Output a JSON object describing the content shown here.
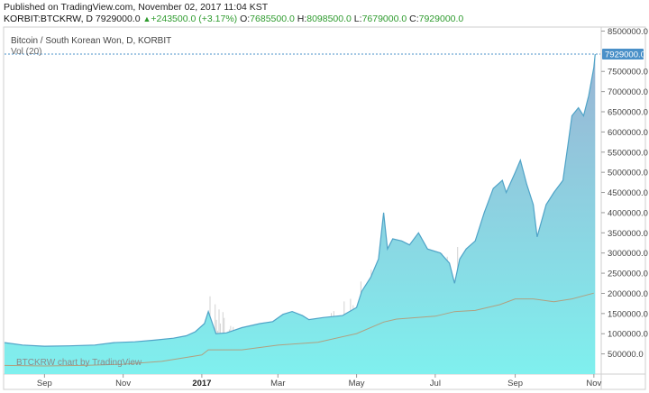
{
  "header": {
    "published": "Published on TradingView.com, November 02, 2017 11:04 KST",
    "symbol": "KORBIT:BTCKRW, D",
    "price": "7929000.0",
    "change": "+243500.0 (+3.17%)",
    "open_label": "O:",
    "open": "7685500.0",
    "high_label": "H:",
    "high": "8098500.0",
    "low_label": "L:",
    "low": "7679000.0",
    "close_label": "C:",
    "close": "7929000.0"
  },
  "legend": {
    "title": "Bitcoin / South Korean Won, D, KORBIT",
    "volume": "Vol (20)"
  },
  "watermark": "BTCKRW chart by TradingView",
  "colors": {
    "area_top": "#8fb6d6",
    "area_bottom": "#7fe8ea",
    "line": "#4fa3c7",
    "volume": "#9c9c9c",
    "price_box": "#4a90c8",
    "change_up": "#2e9b2e"
  },
  "chart_data": {
    "type": "area",
    "title": "Bitcoin / South Korean Won, D, KORBIT",
    "ylim": [
      0,
      8600000
    ],
    "y_ticks": [
      500000,
      1000000,
      1500000,
      2000000,
      2500000,
      3000000,
      3500000,
      4000000,
      4500000,
      5000000,
      5500000,
      6000000,
      6500000,
      7000000,
      7500000,
      8500000
    ],
    "y_tick_labels": [
      "500000.0",
      "1000000.0",
      "1500000.0",
      "2000000.0",
      "2500000.0",
      "3000000.0",
      "3500000.0",
      "4000000.0",
      "4500000.0",
      "5000000.0",
      "5500000.0",
      "6000000.0",
      "6500000.0",
      "7000000.0",
      "7500000.0",
      "8500000.0"
    ],
    "last_price": 7929000,
    "last_price_label": "7929000.0",
    "x_range": [
      "2016-08-01",
      "2017-11-06"
    ],
    "x_ticks": [
      {
        "date": "2016-09-01",
        "label": "Sep",
        "bold": false
      },
      {
        "date": "2016-11-01",
        "label": "Nov",
        "bold": false
      },
      {
        "date": "2017-01-01",
        "label": "2017",
        "bold": true
      },
      {
        "date": "2017-03-01",
        "label": "Mar",
        "bold": false
      },
      {
        "date": "2017-05-01",
        "label": "May",
        "bold": false
      },
      {
        "date": "2017-07-01",
        "label": "Jul",
        "bold": false
      },
      {
        "date": "2017-09-01",
        "label": "Sep",
        "bold": false
      },
      {
        "date": "2017-11-01",
        "label": "Nov",
        "bold": false
      }
    ],
    "series": [
      {
        "x": [
          "2016-08-01",
          "2016-08-15",
          "2016-09-01",
          "2016-09-20",
          "2016-10-10",
          "2016-10-25",
          "2016-11-10",
          "2016-11-25",
          "2016-12-10",
          "2016-12-20",
          "2016-12-27",
          "2017-01-03",
          "2017-01-06",
          "2017-01-12",
          "2017-01-20",
          "2017-02-01",
          "2017-02-15",
          "2017-02-25",
          "2017-03-05",
          "2017-03-12",
          "2017-03-20",
          "2017-03-25",
          "2017-04-05",
          "2017-04-20",
          "2017-05-01",
          "2017-05-05",
          "2017-05-12",
          "2017-05-18",
          "2017-05-22",
          "2017-05-25",
          "2017-05-29",
          "2017-06-05",
          "2017-06-11",
          "2017-06-18",
          "2017-06-25",
          "2017-07-05",
          "2017-07-12",
          "2017-07-16",
          "2017-07-20",
          "2017-07-25",
          "2017-08-01",
          "2017-08-08",
          "2017-08-15",
          "2017-08-22",
          "2017-08-25",
          "2017-09-01",
          "2017-09-05",
          "2017-09-10",
          "2017-09-15",
          "2017-09-18",
          "2017-09-25",
          "2017-10-01",
          "2017-10-08",
          "2017-10-12",
          "2017-10-15",
          "2017-10-20",
          "2017-10-24",
          "2017-10-28",
          "2017-11-01",
          "2017-11-02"
        ],
        "values": [
          780000,
          720000,
          690000,
          700000,
          720000,
          780000,
          800000,
          840000,
          890000,
          950000,
          1050000,
          1250000,
          1550000,
          1000000,
          1020000,
          1150000,
          1250000,
          1300000,
          1480000,
          1550000,
          1450000,
          1350000,
          1400000,
          1450000,
          1650000,
          2050000,
          2400000,
          2850000,
          4000000,
          3100000,
          3350000,
          3300000,
          3200000,
          3500000,
          3100000,
          3000000,
          2750000,
          2250000,
          2850000,
          3100000,
          3300000,
          4000000,
          4600000,
          4800000,
          4500000,
          5000000,
          5300000,
          4700000,
          4200000,
          3400000,
          4200000,
          4500000,
          4800000,
          5700000,
          6400000,
          6600000,
          6400000,
          6900000,
          7600000,
          7929000
        ]
      }
    ],
    "volume_series": {
      "name": "Vol (20)",
      "x": [
        "2016-08-01",
        "2016-09-01",
        "2016-10-01",
        "2016-11-01",
        "2016-12-01",
        "2017-01-01",
        "2017-01-06",
        "2017-02-01",
        "2017-03-01",
        "2017-04-01",
        "2017-05-01",
        "2017-05-22",
        "2017-06-01",
        "2017-07-01",
        "2017-07-16",
        "2017-08-01",
        "2017-08-20",
        "2017-09-01",
        "2017-09-15",
        "2017-10-01",
        "2017-10-15",
        "2017-11-01"
      ],
      "values": [
        150000,
        120000,
        150000,
        180000,
        250000,
        400000,
        900000,
        350000,
        600000,
        550000,
        900000,
        1600000,
        1100000,
        1200000,
        1400000,
        1300000,
        1900000,
        1800000,
        2100000,
        1400000,
        1900000,
        1700000
      ],
      "ma": [
        150000,
        140000,
        150000,
        170000,
        220000,
        330000,
        420000,
        420000,
        500000,
        550000,
        700000,
        900000,
        950000,
        1000000,
        1080000,
        1100000,
        1200000,
        1300000,
        1300000,
        1250000,
        1300000,
        1400000
      ]
    }
  }
}
